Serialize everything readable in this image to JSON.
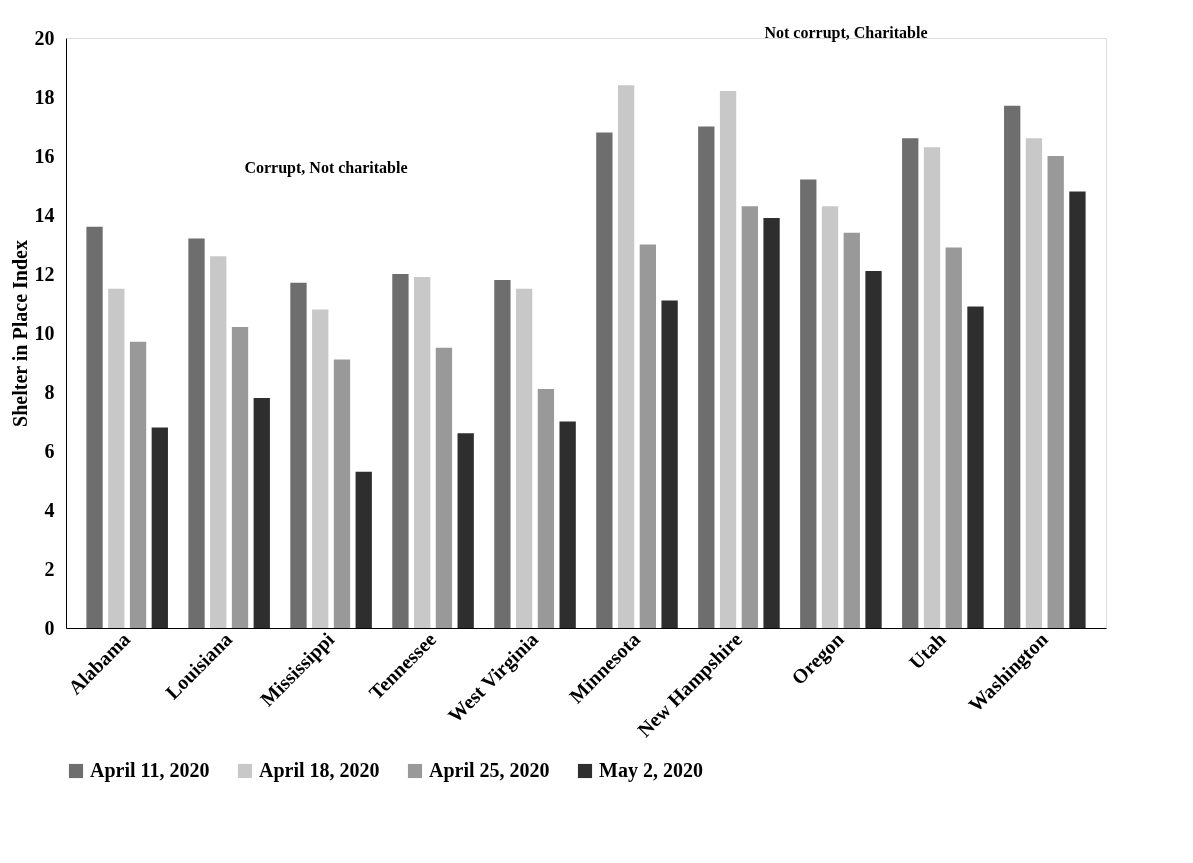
{
  "chart_data": {
    "type": "bar",
    "ylabel": "Shelter in Place Index",
    "categories": [
      "Alabama",
      "Louisiana",
      "Mississippi",
      "Tennessee",
      "West Virginia",
      "Minnesota",
      "New Hampshire",
      "Oregon",
      "Utah",
      "Washington"
    ],
    "series": [
      {
        "name": "April 11, 2020",
        "color": "#6e6e6e",
        "values": [
          13.6,
          13.2,
          11.7,
          12.0,
          11.8,
          16.8,
          17.0,
          15.2,
          16.6,
          17.7
        ]
      },
      {
        "name": "April 18, 2020",
        "color": "#c8c8c8",
        "values": [
          11.5,
          12.6,
          10.8,
          11.9,
          11.5,
          18.4,
          18.2,
          14.3,
          16.3,
          16.6
        ]
      },
      {
        "name": "April 25, 2020",
        "color": "#999999",
        "values": [
          9.7,
          10.2,
          9.1,
          9.5,
          8.1,
          13.0,
          14.3,
          13.4,
          12.9,
          16.0
        ]
      },
      {
        "name": "May 2, 2020",
        "color": "#2e2e2e",
        "values": [
          6.8,
          7.8,
          5.3,
          6.6,
          7.0,
          11.1,
          13.9,
          12.1,
          10.9,
          14.8
        ]
      }
    ],
    "ylim": [
      0,
      20
    ],
    "yticks": [
      0,
      2,
      4,
      6,
      8,
      10,
      12,
      14,
      16,
      18,
      20
    ],
    "annotations": [
      "Corrupt, Not charitable",
      "Not corrupt, Charitable"
    ],
    "grid": false,
    "legend": "bottom"
  }
}
